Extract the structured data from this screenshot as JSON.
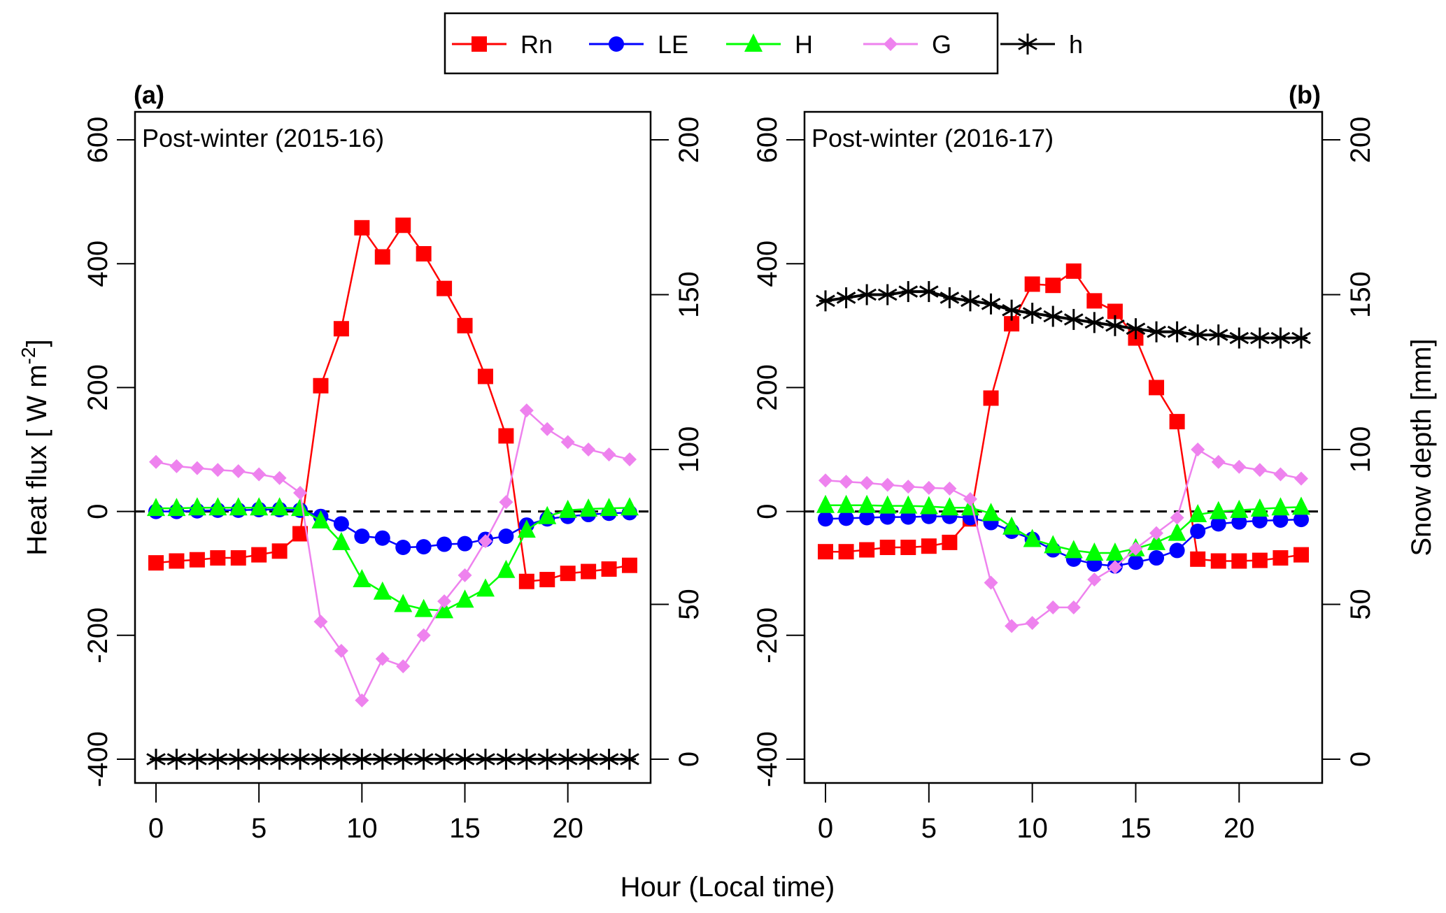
{
  "chart_data": {
    "type": "line",
    "xlabel": "Hour (Local time)",
    "ylabel_left": "Heat flux [ W m",
    "ylabel_left_superscript": "-2",
    "ylabel_left_close": "]",
    "ylabel_right": "Snow depth [mm]",
    "x_ticks": [
      0,
      5,
      10,
      15,
      20
    ],
    "xlim": [
      0,
      23
    ],
    "ylim_left": [
      -400,
      600
    ],
    "y_ticks_left": [
      -400,
      -200,
      0,
      200,
      400,
      600
    ],
    "ylim_right": [
      0,
      200
    ],
    "y_ticks_right": [
      0,
      50,
      100,
      150,
      200
    ],
    "reference_line": {
      "y": 0,
      "style": "dashed"
    },
    "legend": {
      "placement": "top-center",
      "entries": [
        {
          "name": "Rn",
          "color": "#ff0000",
          "marker": "square"
        },
        {
          "name": "LE",
          "color": "#0000ff",
          "marker": "circle"
        },
        {
          "name": "H",
          "color": "#00ff00",
          "marker": "triangle"
        },
        {
          "name": "G",
          "color": "#ee82ee",
          "marker": "diamond"
        },
        {
          "name": "h",
          "color": "#000000",
          "marker": "asterisk"
        }
      ]
    },
    "panels": [
      {
        "label": "(a)",
        "label_position": "top-left",
        "subtitle": "Post-winter (2015-16)",
        "hours": [
          0,
          1,
          2,
          3,
          4,
          5,
          6,
          7,
          8,
          9,
          10,
          11,
          12,
          13,
          14,
          15,
          16,
          17,
          18,
          19,
          20,
          21,
          22,
          23
        ],
        "series": [
          {
            "name": "Rn",
            "axis": "left",
            "values": [
              -83,
              -80,
              -78,
              -75,
              -75,
              -70,
              -64,
              -36,
              203,
              295,
              458,
              411,
              462,
              416,
              360,
              300,
              218,
              122,
              -113,
              -110,
              -100,
              -97,
              -93,
              -87
            ]
          },
          {
            "name": "LE",
            "axis": "left",
            "values": [
              0,
              0,
              1,
              2,
              2,
              3,
              3,
              2,
              -8,
              -20,
              -40,
              -43,
              -58,
              -57,
              -53,
              -52,
              -45,
              -40,
              -22,
              -12,
              -8,
              -5,
              -3,
              -2
            ]
          },
          {
            "name": "H",
            "axis": "left",
            "values": [
              5,
              5,
              6,
              6,
              6,
              6,
              6,
              5,
              -15,
              -50,
              -110,
              -130,
              -150,
              -158,
              -160,
              -143,
              -125,
              -95,
              -30,
              -8,
              2,
              4,
              5,
              6
            ]
          },
          {
            "name": "G",
            "axis": "left",
            "values": [
              80,
              73,
              70,
              67,
              65,
              60,
              54,
              30,
              -178,
              -225,
              -305,
              -238,
              -250,
              -200,
              -145,
              -103,
              -48,
              15,
              163,
              133,
              112,
              100,
              92,
              84
            ]
          },
          {
            "name": "h",
            "axis": "right",
            "values": [
              0,
              0,
              0,
              0,
              0,
              0,
              0,
              0,
              0,
              0,
              0,
              0,
              0,
              0,
              0,
              0,
              0,
              0,
              0,
              0,
              0,
              0,
              0,
              0
            ]
          }
        ]
      },
      {
        "label": "(b)",
        "label_position": "top-right",
        "subtitle": "Post-winter (2016-17)",
        "hours": [
          0,
          1,
          2,
          3,
          4,
          5,
          6,
          7,
          8,
          9,
          10,
          11,
          12,
          13,
          14,
          15,
          16,
          17,
          18,
          19,
          20,
          21,
          22,
          23
        ],
        "series": [
          {
            "name": "Rn",
            "axis": "left",
            "values": [
              -65,
              -65,
              -62,
              -58,
              -58,
              -56,
              -50,
              -12,
              183,
              303,
              367,
              365,
              388,
              340,
              323,
              280,
              200,
              145,
              -77,
              -80,
              -80,
              -79,
              -75,
              -70
            ]
          },
          {
            "name": "LE",
            "axis": "left",
            "values": [
              -12,
              -11,
              -10,
              -9,
              -9,
              -8,
              -8,
              -10,
              -18,
              -32,
              -45,
              -62,
              -77,
              -85,
              -88,
              -82,
              -75,
              -63,
              -32,
              -20,
              -17,
              -15,
              -14,
              -13
            ]
          },
          {
            "name": "H",
            "axis": "left",
            "values": [
              10,
              10,
              10,
              9,
              9,
              8,
              6,
              6,
              -3,
              -25,
              -45,
              -55,
              -63,
              -67,
              -67,
              -60,
              -50,
              -35,
              -5,
              0,
              2,
              4,
              6,
              7
            ]
          },
          {
            "name": "G",
            "axis": "left",
            "values": [
              50,
              48,
              46,
              43,
              40,
              38,
              37,
              20,
              -115,
              -185,
              -180,
              -155,
              -155,
              -110,
              -90,
              -60,
              -35,
              -10,
              100,
              80,
              72,
              67,
              60,
              53
            ]
          },
          {
            "name": "h",
            "axis": "right",
            "values": [
              148,
              149,
              150,
              150,
              151,
              151,
              149,
              148,
              147,
              145,
              144,
              143,
              142,
              141,
              140,
              139,
              138,
              138,
              137,
              137,
              136,
              136,
              136,
              136
            ]
          }
        ]
      }
    ]
  }
}
